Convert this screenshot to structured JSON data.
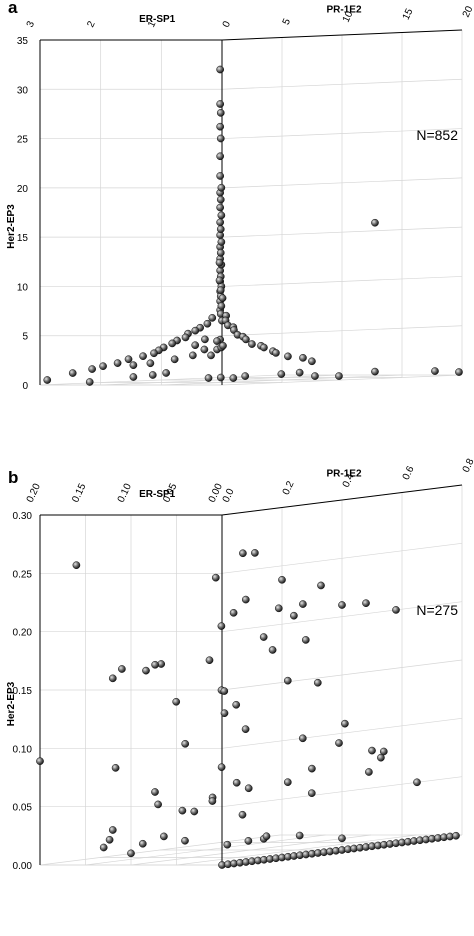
{
  "chart_data": [
    {
      "panel": "a",
      "type": "scatter",
      "dimensions": 3,
      "annotation": "N=852",
      "axes": {
        "x": {
          "label": "PR-1E2",
          "range": [
            0,
            20
          ],
          "ticks": [
            0,
            5,
            10,
            15,
            20
          ]
        },
        "y": {
          "label": "ER-SP1",
          "range": [
            0,
            3
          ],
          "ticks": [
            1,
            2,
            3
          ]
        },
        "z": {
          "label": "Her2-EP3",
          "range": [
            0,
            35
          ],
          "ticks": [
            0,
            5,
            10,
            15,
            20,
            25,
            30,
            35
          ]
        }
      },
      "grid": true,
      "points_shown": [
        [
          0.1,
          0.05,
          32.0
        ],
        [
          0.1,
          0.05,
          28.5
        ],
        [
          0.15,
          0.05,
          27.6
        ],
        [
          0.1,
          0.05,
          26.2
        ],
        [
          0.15,
          0.05,
          25.0
        ],
        [
          0.1,
          0.05,
          23.2
        ],
        [
          0.1,
          0.05,
          21.2
        ],
        [
          0.2,
          0.05,
          20.0
        ],
        [
          0.1,
          0.05,
          19.5
        ],
        [
          0.15,
          0.05,
          18.8
        ],
        [
          0.1,
          0.05,
          18.0
        ],
        [
          0.2,
          0.05,
          17.2
        ],
        [
          0.1,
          0.05,
          16.5
        ],
        [
          0.15,
          0.05,
          15.8
        ],
        [
          0.1,
          0.05,
          15.2
        ],
        [
          0.2,
          0.05,
          14.5
        ],
        [
          0.1,
          0.05,
          14.0
        ],
        [
          0.15,
          0.05,
          13.4
        ],
        [
          0.1,
          0.05,
          12.8
        ],
        [
          0.2,
          0.05,
          12.2
        ],
        [
          0.1,
          0.05,
          11.6
        ],
        [
          0.15,
          0.05,
          11.0
        ],
        [
          0.1,
          0.05,
          10.5
        ],
        [
          0.2,
          0.05,
          10.0
        ],
        [
          0.1,
          0.05,
          9.5
        ],
        [
          0.15,
          0.05,
          9.0
        ],
        [
          0.1,
          0.05,
          8.5
        ],
        [
          0.2,
          0.05,
          8.0
        ],
        [
          0.1,
          0.05,
          7.6
        ],
        [
          0.15,
          0.05,
          7.2
        ],
        [
          0.3,
          0.05,
          8.8
        ],
        [
          0.4,
          0.1,
          9.6
        ],
        [
          0.3,
          0.1,
          10.6
        ],
        [
          0.3,
          0.1,
          12.4
        ],
        [
          0.5,
          0.1,
          6.5
        ],
        [
          0.2,
          0.2,
          6.8
        ],
        [
          0.6,
          0.05,
          7.0
        ],
        [
          0.3,
          0.3,
          6.2
        ],
        [
          0.8,
          0.1,
          6.5
        ],
        [
          0.2,
          0.4,
          5.8
        ],
        [
          1.0,
          0.1,
          6.0
        ],
        [
          0.3,
          0.5,
          5.5
        ],
        [
          1.2,
          0.05,
          5.8
        ],
        [
          0.2,
          0.6,
          5.2
        ],
        [
          1.5,
          0.1,
          5.5
        ],
        [
          0.5,
          0.7,
          4.8
        ],
        [
          1.8,
          0.1,
          5.0
        ],
        [
          0.3,
          0.8,
          4.5
        ],
        [
          2.0,
          0.05,
          4.8
        ],
        [
          0.4,
          0.9,
          4.2
        ],
        [
          2.5,
          0.1,
          4.5
        ],
        [
          0.2,
          1.0,
          3.8
        ],
        [
          3.0,
          0.1,
          4.0
        ],
        [
          0.3,
          1.1,
          3.5
        ],
        [
          3.5,
          0.05,
          3.8
        ],
        [
          0.4,
          1.2,
          3.2
        ],
        [
          0.6,
          0.4,
          4.6
        ],
        [
          1.1,
          0.3,
          4.4
        ],
        [
          0.8,
          0.6,
          4.0
        ],
        [
          1.6,
          0.3,
          3.9
        ],
        [
          0.5,
          1.4,
          2.9
        ],
        [
          0.3,
          1.6,
          2.6
        ],
        [
          0.4,
          1.8,
          2.2
        ],
        [
          0.2,
          2.0,
          1.9
        ],
        [
          0.3,
          2.2,
          1.6
        ],
        [
          0.2,
          2.5,
          1.2
        ],
        [
          4.0,
          0.1,
          3.6
        ],
        [
          4.5,
          0.05,
          3.2
        ],
        [
          5.0,
          0.1,
          3.0
        ],
        [
          6.0,
          0.1,
          2.6
        ],
        [
          7.0,
          0.05,
          2.4
        ],
        [
          8.0,
          0.1,
          2.0
        ],
        [
          0.1,
          0.05,
          4.6
        ],
        [
          0.1,
          0.1,
          3.6
        ],
        [
          0.1,
          0.2,
          3.0
        ],
        [
          0.2,
          0.05,
          3.8
        ],
        [
          0.05,
          0.3,
          3.6
        ],
        [
          0.1,
          0.5,
          3.0
        ],
        [
          0.1,
          0.8,
          2.6
        ],
        [
          0.1,
          1.2,
          2.2
        ],
        [
          0.2,
          1.5,
          2.0
        ],
        [
          0.1,
          2.9,
          0.5
        ],
        [
          0.1,
          2.2,
          0.3
        ],
        [
          0.2,
          1.5,
          0.8
        ],
        [
          0.3,
          1.2,
          1.0
        ],
        [
          0.4,
          1.0,
          1.2
        ],
        [
          8.0,
          0.05,
          0.5
        ],
        [
          10.0,
          0.05,
          0.4
        ],
        [
          13.0,
          0.05,
          0.7
        ],
        [
          18.0,
          0.05,
          0.5
        ],
        [
          20.0,
          0.05,
          0.3
        ],
        [
          9.0,
          0.5,
          0.8
        ],
        [
          6.0,
          1.0,
          0.4
        ],
        [
          8.0,
          1.2,
          0.5
        ],
        [
          10.0,
          1.0,
          0.6
        ],
        [
          9.0,
          1.8,
          0.3
        ],
        [
          10.0,
          2.2,
          0.2
        ],
        [
          13.0,
          0.05,
          15.8
        ]
      ]
    },
    {
      "panel": "b",
      "type": "scatter",
      "dimensions": 3,
      "annotation": "N=275",
      "axes": {
        "x": {
          "label": "PR-1E2",
          "range": [
            0,
            0.8
          ],
          "ticks": [
            "0.0",
            "0.2",
            "0.4",
            "0.6",
            "0.8"
          ]
        },
        "y": {
          "label": "ER-SP1",
          "range": [
            0,
            0.2
          ],
          "ticks": [
            "0.00",
            "0.05",
            "0.10",
            "0.15",
            "0.20"
          ]
        },
        "z": {
          "label": "Her2-EP3",
          "range": [
            0,
            0.3
          ],
          "ticks": [
            "0.00",
            "0.05",
            "0.10",
            "0.15",
            "0.20",
            "0.25",
            "0.30"
          ]
        }
      },
      "grid": true,
      "points_shown": [
        [
          0.1,
          0.01,
          0.264
        ],
        [
          0.14,
          0.01,
          0.263
        ],
        [
          0.04,
          0.02,
          0.245
        ],
        [
          0.2,
          0.0,
          0.238
        ],
        [
          0.33,
          0.0,
          0.229
        ],
        [
          0.0,
          0.16,
          0.257
        ],
        [
          0.14,
          0.02,
          0.223
        ],
        [
          0.16,
          0.04,
          0.211
        ],
        [
          0.25,
          0.02,
          0.212
        ],
        [
          0.3,
          0.01,
          0.214
        ],
        [
          0.4,
          0.0,
          0.21
        ],
        [
          0.48,
          0.0,
          0.209
        ],
        [
          0.58,
          0.0,
          0.2
        ],
        [
          0.18,
          0.06,
          0.199
        ],
        [
          0.27,
          0.01,
          0.205
        ],
        [
          0.23,
          0.03,
          0.188
        ],
        [
          0.34,
          0.02,
          0.182
        ],
        [
          0.29,
          0.04,
          0.175
        ],
        [
          0.11,
          0.05,
          0.172
        ],
        [
          0.04,
          0.08,
          0.171
        ],
        [
          0.05,
          0.09,
          0.17
        ],
        [
          0.05,
          0.1,
          0.165
        ],
        [
          0.0,
          0.11,
          0.168
        ],
        [
          0.0,
          0.12,
          0.16
        ],
        [
          0.15,
          0.05,
          0.145
        ],
        [
          0.22,
          0.07,
          0.142
        ],
        [
          0.09,
          0.08,
          0.137
        ],
        [
          0.29,
          0.08,
          0.128
        ],
        [
          0.16,
          0.05,
          0.125
        ],
        [
          0.28,
          0.02,
          0.149
        ],
        [
          0.38,
          0.02,
          0.144
        ],
        [
          0.2,
          0.04,
          0.11
        ],
        [
          0.44,
          0.01,
          0.107
        ],
        [
          0.0,
          0.2,
          0.089
        ],
        [
          0.5,
          0.0,
          0.082
        ],
        [
          0.12,
          0.04,
          0.08
        ],
        [
          0.6,
          0.02,
          0.078
        ],
        [
          0.56,
          0.01,
          0.074
        ],
        [
          0.12,
          0.08,
          0.1
        ],
        [
          0.33,
          0.02,
          0.098
        ],
        [
          0.39,
          0.0,
          0.092
        ],
        [
          0.07,
          0.14,
          0.081
        ],
        [
          0.52,
          0.01,
          0.063
        ],
        [
          0.65,
          0.0,
          0.05
        ],
        [
          0.4,
          0.0,
          0.01
        ],
        [
          0.0,
          0.12,
          0.03
        ],
        [
          0.0,
          0.13,
          0.015
        ],
        [
          0.05,
          0.14,
          0.02
        ],
        [
          0.1,
          0.12,
          0.015
        ],
        [
          0.14,
          0.11,
          0.02
        ],
        [
          0.18,
          0.1,
          0.015
        ],
        [
          0.23,
          0.07,
          0.01
        ],
        [
          0.27,
          0.06,
          0.012
        ],
        [
          0.3,
          0.05,
          0.015
        ],
        [
          0.35,
          0.03,
          0.014
        ],
        [
          0.05,
          0.06,
          0.045
        ],
        [
          0.06,
          0.09,
          0.05
        ],
        [
          0.12,
          0.07,
          0.042
        ],
        [
          0.15,
          0.06,
          0.05
        ],
        [
          0.09,
          0.04,
          0.055
        ],
        [
          0.28,
          0.02,
          0.062
        ],
        [
          0.22,
          0.05,
          0.036
        ],
        [
          0.2,
          0.02,
          0.016
        ],
        [
          0.08,
          0.1,
          0.06
        ],
        [
          0.0,
          0.1,
          0.01
        ],
        [
          0.14,
          0.03,
          0.066
        ],
        [
          0.18,
          0.03,
          0.06
        ],
        [
          0.33,
          0.01,
          0.072
        ],
        [
          0.36,
          0.02,
          0.05
        ]
      ],
      "ridge_points": {
        "er_sp1": 0.0,
        "her2_ep3": 0.0,
        "pr_1e2": [
          0.0,
          0.02,
          0.04,
          0.06,
          0.08,
          0.1,
          0.12,
          0.14,
          0.16,
          0.18,
          0.2,
          0.22,
          0.24,
          0.26,
          0.28,
          0.3,
          0.32,
          0.34,
          0.36,
          0.38,
          0.4,
          0.42,
          0.44,
          0.46,
          0.48,
          0.5,
          0.52,
          0.54,
          0.56,
          0.58,
          0.6,
          0.62,
          0.64,
          0.66,
          0.68,
          0.7,
          0.72,
          0.74,
          0.76,
          0.78
        ]
      }
    }
  ]
}
